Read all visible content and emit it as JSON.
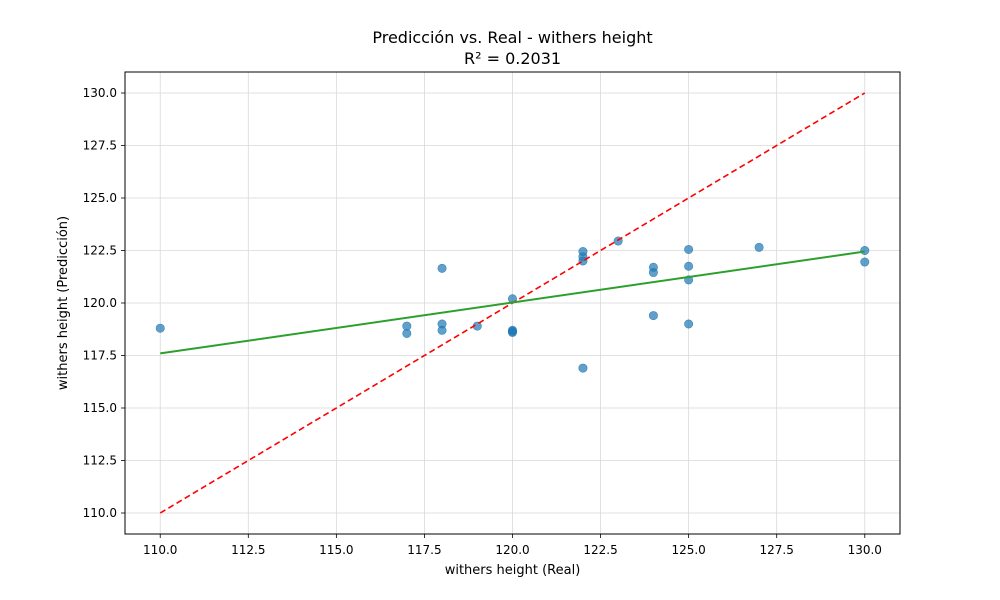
{
  "chart_data": {
    "type": "scatter",
    "title": "Predicción vs. Real - withers height",
    "subtitle": "R² = 0.2031",
    "xlabel": "withers height (Real)",
    "ylabel": "withers height (Predicción)",
    "xlim": [
      109.0,
      131.0
    ],
    "ylim": [
      109.0,
      131.0
    ],
    "xticks": [
      110.0,
      112.5,
      115.0,
      117.5,
      120.0,
      122.5,
      125.0,
      127.5,
      130.0
    ],
    "yticks": [
      110.0,
      112.5,
      115.0,
      117.5,
      120.0,
      122.5,
      125.0,
      127.5,
      130.0
    ],
    "xtick_labels": [
      "110.0",
      "112.5",
      "115.0",
      "117.5",
      "120.0",
      "122.5",
      "125.0",
      "127.5",
      "130.0"
    ],
    "ytick_labels": [
      "110.0",
      "112.5",
      "115.0",
      "117.5",
      "120.0",
      "122.5",
      "125.0",
      "127.5",
      "130.0"
    ],
    "grid": true,
    "points": {
      "color": "#1f77b4",
      "x": [
        110,
        117,
        117,
        118,
        118,
        118,
        119,
        120,
        120,
        120,
        120,
        122,
        122,
        122,
        122,
        123,
        124,
        124,
        124,
        125,
        125,
        125,
        125,
        127,
        130,
        130
      ],
      "y": [
        118.8,
        118.9,
        118.55,
        121.65,
        119.0,
        118.7,
        118.9,
        120.2,
        118.7,
        118.6,
        118.65,
        122.45,
        122.2,
        122.0,
        116.9,
        122.95,
        121.7,
        121.45,
        119.4,
        122.55,
        121.75,
        121.1,
        119.0,
        122.65,
        122.5,
        121.95
      ]
    },
    "identity_line": {
      "x": [
        110,
        130
      ],
      "y": [
        110,
        130
      ],
      "color": "#ff0000",
      "style": "dashed"
    },
    "fit_line": {
      "x": [
        110,
        130
      ],
      "y": [
        117.6,
        122.45
      ],
      "color": "#2ca02c",
      "style": "solid"
    }
  }
}
